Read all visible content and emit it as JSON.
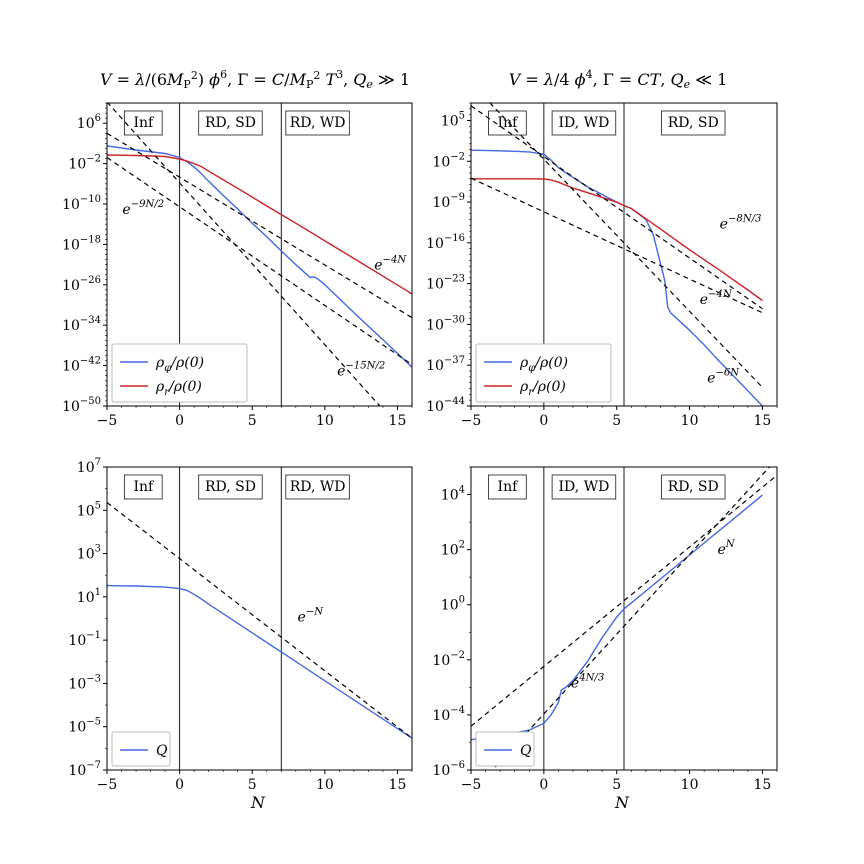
{
  "colors": {
    "phi": "#4169e1",
    "r": "#cc2222",
    "fit": "#000000"
  },
  "titles": [
    "V = λ/(6M_P²) φ⁶, Γ = C/M_P² T³, Q_e ≫ 1",
    "V = λ/4 φ⁴, Γ = CT, Q_e ≪ 1"
  ],
  "xlabel": "N",
  "chart_data": [
    {
      "type": "line",
      "panel": "top-left",
      "xlim": [
        -5,
        16
      ],
      "ylim_log10": [
        -50,
        10
      ],
      "y_scale": "log",
      "yticks_log10": [
        6,
        -2,
        -10,
        -18,
        -26,
        -34,
        -42,
        -50
      ],
      "xticks": [
        -5,
        0,
        5,
        10,
        15
      ],
      "vlines": [
        0,
        7
      ],
      "regions": [
        {
          "text": "Inf",
          "x": -2.5
        },
        {
          "text": "RD, SD",
          "x": 3.5
        },
        {
          "text": "RD, WD",
          "x": 9.5
        }
      ],
      "legend": {
        "position": "lower-left",
        "entries": [
          {
            "text": "ρ_φ/ρ(0)",
            "series": "phi"
          },
          {
            "text": "ρ_r/ρ(0)",
            "series": "r"
          }
        ]
      },
      "series": [
        {
          "key": "phi",
          "x": [
            -5,
            -3,
            -1,
            0,
            0.5,
            1,
            1.5,
            2,
            3,
            4,
            5,
            6,
            7,
            8,
            8.5,
            9,
            9.2,
            9.5,
            10,
            12,
            14,
            16
          ],
          "log10y": [
            1.5,
            0.7,
            0.0,
            -0.8,
            -1.6,
            -2.7,
            -4.0,
            -5.5,
            -8.3,
            -11.0,
            -13.8,
            -16.5,
            -19.3,
            -22.0,
            -23.3,
            -24.6,
            -24.4,
            -24.8,
            -26.0,
            -31.5,
            -36.9,
            -42.3
          ]
        },
        {
          "key": "r",
          "x": [
            -5,
            -3,
            -1,
            0,
            0.5,
            1,
            1.5,
            2,
            4,
            6,
            8,
            10,
            12,
            14,
            16
          ],
          "log10y": [
            -0.3,
            -0.4,
            -0.6,
            -1.1,
            -1.5,
            -2.0,
            -2.6,
            -3.5,
            -6.9,
            -10.4,
            -13.8,
            -17.3,
            -20.8,
            -24.3,
            -27.8
          ]
        }
      ],
      "fits": [
        {
          "x": [
            -5,
            16
          ],
          "log10y": [
            4.0,
            -32.5
          ],
          "text": "e^{-4N}",
          "at": [
            14.5,
            -23
          ]
        },
        {
          "x": [
            -5,
            16
          ],
          "log10y": [
            -0.8,
            -41.8
          ],
          "text": "e^{-9N/2}",
          "at": [
            -2.5,
            -12
          ]
        },
        {
          "x": [
            -5,
            16
          ],
          "log10y": [
            10.2,
            -57.1
          ],
          "text": "e^{-15N/2}",
          "at": [
            12.5,
            -44
          ]
        }
      ]
    },
    {
      "type": "line",
      "panel": "top-right",
      "xlim": [
        -5,
        16
      ],
      "ylim_log10": [
        -44,
        8
      ],
      "y_scale": "log",
      "yticks_log10": [
        5,
        -2,
        -9,
        -16,
        -23,
        -30,
        -37,
        -44
      ],
      "xticks": [
        -5,
        0,
        5,
        10,
        15
      ],
      "vlines": [
        0,
        5.5
      ],
      "regions": [
        {
          "text": "Inf",
          "x": -2.5
        },
        {
          "text": "ID, WD",
          "x": 2.75
        },
        {
          "text": "RD, SD",
          "x": 10.25
        }
      ],
      "legend": {
        "position": "lower-left",
        "entries": [
          {
            "text": "ρ_φ/ρ(0)",
            "series": "phi"
          },
          {
            "text": "ρ_r/ρ(0)",
            "series": "r"
          }
        ]
      },
      "series": [
        {
          "key": "phi",
          "x": [
            -5,
            -3,
            -1,
            0,
            0.5,
            1,
            2,
            3,
            4,
            5,
            5.5,
            6,
            7,
            7.5,
            8,
            8.3,
            8.5,
            8.7,
            9,
            10,
            11,
            12,
            13,
            14,
            15
          ],
          "log10y": [
            -0.1,
            -0.2,
            -0.4,
            -0.8,
            -1.8,
            -3.1,
            -4.8,
            -6.4,
            -7.7,
            -9.0,
            -9.6,
            -10.1,
            -12.0,
            -14.5,
            -19.5,
            -22.5,
            -27.0,
            -28.0,
            -28.7,
            -31.0,
            -33.5,
            -36.2,
            -38.8,
            -41.4,
            -44.0
          ]
        },
        {
          "key": "r",
          "x": [
            -5,
            -2,
            -1,
            0,
            0.5,
            1,
            2,
            3,
            4,
            5,
            5.5,
            6,
            8,
            10,
            12,
            14,
            15
          ],
          "log10y": [
            -5.0,
            -5.0,
            -5.0,
            -5.05,
            -5.2,
            -5.6,
            -6.6,
            -7.4,
            -8.2,
            -9.0,
            -9.6,
            -10.1,
            -13.6,
            -17.2,
            -20.6,
            -24.1,
            -25.9
          ]
        }
      ],
      "fits": [
        {
          "x": [
            -5,
            15
          ],
          "log10y": [
            -4.9,
            -28.0
          ],
          "text": "e^{-8N/3}",
          "at": [
            13.5,
            -13.5
          ]
        },
        {
          "x": [
            -5,
            15
          ],
          "log10y": [
            7.5,
            -27.3
          ],
          "text": "e^{-4N}",
          "at": [
            11.8,
            -26.5
          ]
        },
        {
          "x": [
            -5,
            15
          ],
          "log10y": [
            11.4,
            -40.8
          ],
          "text": "e^{-6N}",
          "at": [
            12.3,
            -40.0
          ]
        }
      ]
    },
    {
      "type": "line",
      "panel": "bottom-left",
      "xlim": [
        -5,
        16
      ],
      "ylim_log10": [
        -7,
        7
      ],
      "y_scale": "log",
      "yticks_log10": [
        7,
        5,
        3,
        1,
        -1,
        -3,
        -5,
        -7
      ],
      "xticks": [
        -5,
        0,
        5,
        10,
        15
      ],
      "vlines": [
        0,
        7
      ],
      "regions": [
        {
          "text": "Inf",
          "x": -2.5
        },
        {
          "text": "RD, SD",
          "x": 3.5
        },
        {
          "text": "RD, WD",
          "x": 9.5
        }
      ],
      "legend": {
        "position": "lower-left",
        "entries": [
          {
            "text": "Q",
            "series": "Q"
          }
        ]
      },
      "series": [
        {
          "key": "Q",
          "x": [
            -5,
            -3,
            -1,
            0,
            0.5,
            1,
            1.5,
            2,
            3,
            4,
            6,
            8,
            10,
            12,
            14,
            16
          ],
          "log10y": [
            1.52,
            1.5,
            1.45,
            1.38,
            1.3,
            1.12,
            0.9,
            0.66,
            0.22,
            -0.22,
            -1.11,
            -1.99,
            -2.88,
            -3.76,
            -4.65,
            -5.53
          ]
        }
      ],
      "fits": [
        {
          "x": [
            -5,
            16
          ],
          "log10y": [
            5.36,
            -5.53
          ],
          "text": "e^{-N}",
          "at": [
            9.0,
            -0.15
          ]
        }
      ]
    },
    {
      "type": "line",
      "panel": "bottom-right",
      "xlim": [
        -5,
        16
      ],
      "ylim_log10": [
        -6,
        5
      ],
      "y_scale": "log",
      "yticks_log10": [
        4,
        2,
        0,
        -2,
        -4,
        -6
      ],
      "xticks": [
        -5,
        0,
        5,
        10,
        15
      ],
      "vlines": [
        0,
        5.5
      ],
      "regions": [
        {
          "text": "Inf",
          "x": -2.5
        },
        {
          "text": "ID, WD",
          "x": 2.75
        },
        {
          "text": "RD, SD",
          "x": 10.25
        }
      ],
      "legend": {
        "position": "lower-left",
        "entries": [
          {
            "text": "Q",
            "series": "Q"
          }
        ]
      },
      "series": [
        {
          "key": "Q",
          "x": [
            -5,
            -3,
            -1,
            0,
            0.5,
            1,
            1.2,
            1.5,
            2,
            3,
            4,
            5,
            5.5,
            7,
            9,
            11,
            13,
            15
          ],
          "log10y": [
            -4.9,
            -4.75,
            -4.55,
            -4.3,
            -4.0,
            -3.55,
            -3.1,
            -3.0,
            -2.75,
            -2.05,
            -1.2,
            -0.45,
            -0.15,
            0.5,
            1.37,
            2.24,
            3.11,
            3.98
          ]
        }
      ],
      "fits": [
        {
          "x": [
            -5,
            16
          ],
          "log10y": [
            -4.41,
            4.7
          ],
          "text": "e^{N}",
          "at": [
            12.5,
            1.85
          ]
        },
        {
          "x": [
            -5,
            16
          ],
          "log10y": [
            -6.86,
            5.3
          ],
          "text": "e^{4N/3}",
          "at": [
            3.0,
            -3.0
          ]
        }
      ]
    }
  ]
}
